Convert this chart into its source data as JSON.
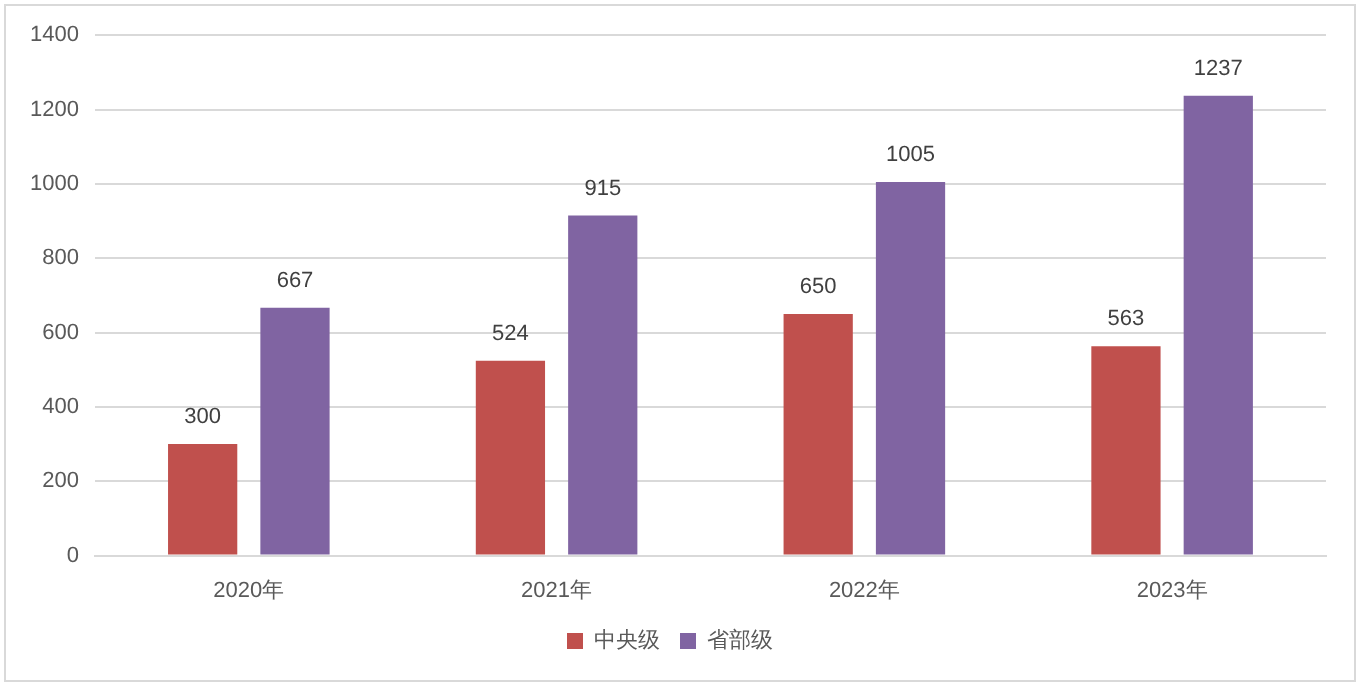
{
  "chart_data": {
    "type": "bar",
    "categories": [
      "2020年",
      "2021年",
      "2022年",
      "2023年"
    ],
    "series": [
      {
        "name": "中央级",
        "color": "#c0504d",
        "values": [
          300,
          524,
          650,
          563
        ]
      },
      {
        "name": "省部级",
        "color": "#8064a2",
        "values": [
          667,
          915,
          1005,
          1237
        ]
      }
    ],
    "ylim": [
      0,
      1400
    ],
    "yticks": [
      0,
      200,
      400,
      600,
      800,
      1000,
      1200,
      1400
    ],
    "grid": "y",
    "legend": "bottom",
    "data_labels": true
  }
}
